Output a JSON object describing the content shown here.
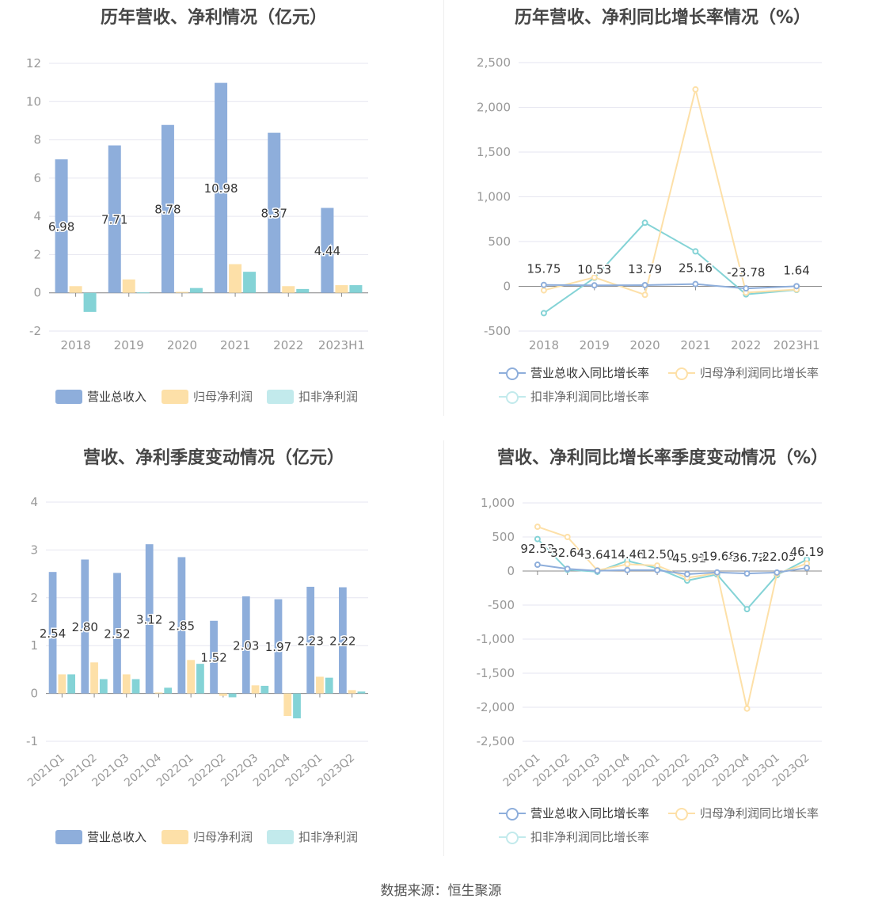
{
  "footer": {
    "source": "数据来源：恒生聚源"
  },
  "panels": [
    {
      "title": "历年营收、净利情况（亿元）",
      "legend": [
        "营业总收入",
        "归母净利润",
        "扣非净利润"
      ]
    },
    {
      "title": "历年营收、净利同比增长率情况（%）",
      "legend": [
        "营业总收入同比增长率",
        "归母净利润同比增长率",
        "扣非净利润同比增长率"
      ]
    },
    {
      "title": "营收、净利季度变动情况（亿元）",
      "legend": [
        "营业总收入",
        "归母净利润",
        "扣非净利润"
      ]
    },
    {
      "title": "营收、净利同比增长率季度变动情况（%）",
      "legend": [
        "营业总收入同比增长率",
        "归母净利润同比增长率",
        "扣非净利润同比增长率"
      ]
    }
  ],
  "colors": {
    "revenue": "#8eaedb",
    "net_profit": "#fde0a8",
    "deducted_profit": "#84d3d6",
    "axis": "#999999",
    "grid": "#e6e6f0"
  },
  "chart_data": [
    {
      "type": "bar",
      "title": "历年营收、净利情况（亿元）",
      "categories": [
        "2018",
        "2019",
        "2020",
        "2021",
        "2022",
        "2023H1"
      ],
      "ylim": [
        -2,
        12
      ],
      "yticks": [
        "-2",
        "0",
        "2",
        "4",
        "6",
        "8",
        "10",
        "12"
      ],
      "series": [
        {
          "name": "营业总收入",
          "values": [
            6.98,
            7.71,
            8.78,
            10.98,
            8.37,
            4.44
          ],
          "labels": [
            "6.98",
            "7.71",
            "8.78",
            "10.98",
            "8.37",
            "4.44"
          ]
        },
        {
          "name": "归母净利润",
          "values": [
            0.35,
            0.7,
            0.05,
            1.5,
            0.35,
            0.4
          ]
        },
        {
          "name": "扣非净利润",
          "values": [
            -1.0,
            0.02,
            0.25,
            1.1,
            0.2,
            0.4
          ]
        }
      ],
      "legend_position": "bottom"
    },
    {
      "type": "line",
      "title": "历年营收、净利同比增长率情况（%）",
      "categories": [
        "2018",
        "2019",
        "2020",
        "2021",
        "2022",
        "2023H1"
      ],
      "ylim": [
        -500,
        2500
      ],
      "yticks": [
        "-500",
        "0",
        "500",
        "1,000",
        "1,500",
        "2,000",
        "2,500"
      ],
      "series": [
        {
          "name": "营业总收入同比增长率",
          "values": [
            15.75,
            10.53,
            13.79,
            25.16,
            -23.78,
            1.64
          ],
          "labels": [
            "15.75",
            "10.53",
            "13.79",
            "25.16",
            "-23.78",
            "1.64"
          ]
        },
        {
          "name": "归母净利润同比增长率",
          "values": [
            -45,
            100,
            -95,
            2200,
            -70,
            -35
          ]
        },
        {
          "name": "扣非净利润同比增长率",
          "values": [
            -300,
            95,
            710,
            390,
            -90,
            -40
          ]
        }
      ],
      "legend_position": "bottom"
    },
    {
      "type": "bar",
      "title": "营收、净利季度变动情况（亿元）",
      "categories": [
        "2021Q1",
        "2021Q2",
        "2021Q3",
        "2021Q4",
        "2022Q1",
        "2022Q2",
        "2022Q3",
        "2022Q4",
        "2023Q1",
        "2023Q2"
      ],
      "ylim": [
        -1,
        4
      ],
      "yticks": [
        "-1",
        "0",
        "1",
        "2",
        "3",
        "4"
      ],
      "series": [
        {
          "name": "营业总收入",
          "values": [
            2.54,
            2.8,
            2.52,
            3.12,
            2.85,
            1.52,
            2.03,
            1.97,
            2.23,
            2.22
          ],
          "labels": [
            "2.54",
            "2.80",
            "2.52",
            "3.12",
            "2.85",
            "1.52",
            "2.03",
            "1.97",
            "2.23",
            "2.22"
          ]
        },
        {
          "name": "归母净利润",
          "values": [
            0.4,
            0.65,
            0.4,
            0.02,
            0.7,
            -0.05,
            0.17,
            -0.47,
            0.35,
            0.07
          ]
        },
        {
          "name": "扣非净利润",
          "values": [
            0.4,
            0.3,
            0.3,
            0.12,
            0.62,
            -0.08,
            0.16,
            -0.52,
            0.33,
            0.04
          ]
        }
      ],
      "legend_position": "bottom"
    },
    {
      "type": "line",
      "title": "营收、净利同比增长率季度变动情况（%）",
      "categories": [
        "2021Q1",
        "2021Q2",
        "2021Q3",
        "2021Q4",
        "2022Q1",
        "2022Q2",
        "2022Q3",
        "2022Q4",
        "2023Q1",
        "2023Q2"
      ],
      "ylim": [
        -2500,
        1000
      ],
      "yticks": [
        "-2,500",
        "-2,000",
        "-1,500",
        "-1,000",
        "-500",
        "0",
        "500",
        "1,000"
      ],
      "series": [
        {
          "name": "营业总收入同比增长率",
          "values": [
            92.53,
            32.64,
            3.64,
            14.46,
            12.5,
            -45.91,
            -19.68,
            -36.72,
            -22.05,
            46.19
          ],
          "labels": [
            "92.53",
            "32.64",
            "3.64",
            "14.46",
            "12.50",
            "-45.91",
            "-19.68",
            "-36.72",
            "-22.05",
            "46.19"
          ]
        },
        {
          "name": "归母净利润同比增长率",
          "values": [
            650,
            500,
            10,
            100,
            80,
            -100,
            -30,
            -2020,
            -40,
            110
          ]
        },
        {
          "name": "扣非净利润同比增长率",
          "values": [
            470,
            20,
            -10,
            150,
            40,
            -140,
            -50,
            -560,
            -60,
            170
          ]
        }
      ],
      "legend_position": "bottom"
    }
  ]
}
